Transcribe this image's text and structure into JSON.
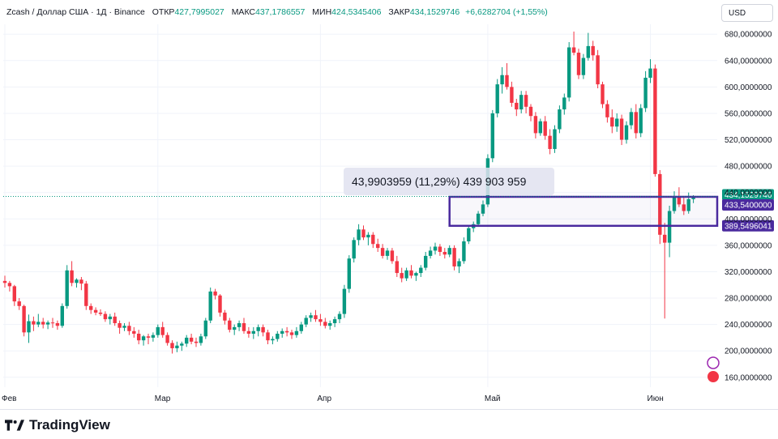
{
  "header": {
    "symbol": "Zcash / Доллар США · 1Д · Binance",
    "open_label": "ОТКР",
    "open_value": "427,7995027",
    "high_label": "МАКС",
    "high_value": "437,1786557",
    "low_label": "МИН",
    "low_value": "424,5345406",
    "close_label": "ЗАКР",
    "close_value": "434,1529746",
    "change_value": "+6,6282704 (+1,55%)"
  },
  "currency_button": "USD",
  "brand": "TradingView",
  "colors": {
    "up": "#089981",
    "down": "#f23645",
    "rect": "#4a2a9e",
    "last_price": "#089981"
  },
  "chart_data": {
    "type": "candlestick",
    "x_labels": [
      "Фев",
      "Мар",
      "Апр",
      "Май",
      "Июн"
    ],
    "y_ticks": [
      "160,0000000",
      "200,0000000",
      "240,0000000",
      "280,0000000",
      "320,0000000",
      "360,0000000",
      "400,0000000",
      "440,0000000",
      "480,0000000",
      "520,0000000",
      "560,0000000",
      "600,0000000",
      "640,0000000",
      "680,0000000"
    ],
    "y_range": [
      145,
      695
    ],
    "price_labels": {
      "last": "434,1529746",
      "upper": "433,5400000",
      "lower": "389,5496041"
    },
    "measure_label": "43,9903959 (11,29%) 439 903 959",
    "measure_range": [
      389.5496041,
      433.54
    ],
    "candles": [
      [
        306,
        314,
        296,
        303
      ],
      [
        303,
        306,
        290,
        298
      ],
      [
        298,
        300,
        268,
        275
      ],
      [
        275,
        280,
        262,
        268
      ],
      [
        268,
        270,
        222,
        228
      ],
      [
        228,
        255,
        212,
        245
      ],
      [
        245,
        252,
        230,
        240
      ],
      [
        240,
        256,
        236,
        244
      ],
      [
        244,
        250,
        234,
        240
      ],
      [
        240,
        246,
        233,
        243
      ],
      [
        243,
        250,
        235,
        242
      ],
      [
        242,
        246,
        232,
        238
      ],
      [
        238,
        272,
        235,
        268
      ],
      [
        268,
        330,
        264,
        322
      ],
      [
        322,
        336,
        298,
        303
      ],
      [
        303,
        310,
        296,
        308
      ],
      [
        308,
        312,
        292,
        302
      ],
      [
        302,
        306,
        262,
        268
      ],
      [
        268,
        272,
        256,
        262
      ],
      [
        262,
        266,
        254,
        258
      ],
      [
        258,
        263,
        253,
        256
      ],
      [
        256,
        260,
        244,
        248
      ],
      [
        248,
        256,
        240,
        252
      ],
      [
        252,
        258,
        238,
        242
      ],
      [
        242,
        246,
        226,
        235
      ],
      [
        235,
        242,
        230,
        238
      ],
      [
        238,
        244,
        224,
        230
      ],
      [
        230,
        236,
        220,
        226
      ],
      [
        226,
        232,
        210,
        216
      ],
      [
        216,
        224,
        208,
        222
      ],
      [
        222,
        226,
        210,
        220
      ],
      [
        220,
        228,
        214,
        224
      ],
      [
        224,
        240,
        220,
        236
      ],
      [
        236,
        244,
        220,
        224
      ],
      [
        224,
        228,
        208,
        212
      ],
      [
        212,
        216,
        196,
        204
      ],
      [
        204,
        214,
        198,
        208
      ],
      [
        208,
        214,
        200,
        211
      ],
      [
        211,
        224,
        206,
        220
      ],
      [
        220,
        226,
        210,
        214
      ],
      [
        214,
        220,
        206,
        212
      ],
      [
        212,
        226,
        208,
        222
      ],
      [
        222,
        250,
        218,
        246
      ],
      [
        246,
        296,
        242,
        290
      ],
      [
        290,
        294,
        278,
        284
      ],
      [
        284,
        286,
        252,
        258
      ],
      [
        258,
        262,
        240,
        246
      ],
      [
        246,
        250,
        228,
        232
      ],
      [
        232,
        240,
        224,
        236
      ],
      [
        236,
        246,
        230,
        242
      ],
      [
        242,
        250,
        226,
        230
      ],
      [
        230,
        236,
        220,
        226
      ],
      [
        226,
        236,
        218,
        230
      ],
      [
        230,
        240,
        222,
        236
      ],
      [
        236,
        240,
        222,
        228
      ],
      [
        228,
        232,
        210,
        216
      ],
      [
        216,
        222,
        210,
        218
      ],
      [
        218,
        230,
        214,
        226
      ],
      [
        226,
        234,
        220,
        230
      ],
      [
        230,
        236,
        222,
        228
      ],
      [
        228,
        232,
        218,
        224
      ],
      [
        224,
        236,
        220,
        230
      ],
      [
        230,
        244,
        226,
        240
      ],
      [
        240,
        254,
        236,
        250
      ],
      [
        250,
        258,
        244,
        254
      ],
      [
        254,
        262,
        244,
        248
      ],
      [
        248,
        256,
        238,
        244
      ],
      [
        244,
        250,
        234,
        238
      ],
      [
        238,
        246,
        232,
        242
      ],
      [
        242,
        252,
        236,
        248
      ],
      [
        248,
        260,
        242,
        256
      ],
      [
        256,
        300,
        250,
        294
      ],
      [
        294,
        345,
        288,
        340
      ],
      [
        340,
        372,
        334,
        368
      ],
      [
        368,
        392,
        360,
        384
      ],
      [
        384,
        390,
        368,
        372
      ],
      [
        372,
        380,
        360,
        376
      ],
      [
        376,
        380,
        356,
        362
      ],
      [
        362,
        370,
        350,
        356
      ],
      [
        356,
        362,
        340,
        344
      ],
      [
        344,
        356,
        338,
        352
      ],
      [
        352,
        356,
        332,
        336
      ],
      [
        336,
        344,
        312,
        318
      ],
      [
        318,
        326,
        304,
        310
      ],
      [
        310,
        326,
        306,
        322
      ],
      [
        322,
        330,
        310,
        314
      ],
      [
        314,
        320,
        306,
        318
      ],
      [
        318,
        330,
        312,
        326
      ],
      [
        326,
        350,
        322,
        344
      ],
      [
        344,
        358,
        340,
        352
      ],
      [
        352,
        364,
        346,
        358
      ],
      [
        358,
        362,
        344,
        350
      ],
      [
        350,
        356,
        340,
        346
      ],
      [
        346,
        360,
        342,
        356
      ],
      [
        356,
        360,
        322,
        328
      ],
      [
        328,
        340,
        318,
        336
      ],
      [
        336,
        372,
        332,
        366
      ],
      [
        366,
        390,
        362,
        386
      ],
      [
        386,
        396,
        380,
        392
      ],
      [
        392,
        412,
        388,
        408
      ],
      [
        408,
        428,
        404,
        422
      ],
      [
        422,
        498,
        418,
        492
      ],
      [
        492,
        565,
        486,
        560
      ],
      [
        560,
        612,
        554,
        604
      ],
      [
        604,
        630,
        590,
        618
      ],
      [
        618,
        636,
        596,
        600
      ],
      [
        600,
        608,
        570,
        576
      ],
      [
        576,
        582,
        556,
        566
      ],
      [
        566,
        594,
        560,
        588
      ],
      [
        588,
        594,
        560,
        570
      ],
      [
        570,
        574,
        548,
        556
      ],
      [
        556,
        562,
        522,
        530
      ],
      [
        530,
        552,
        526,
        548
      ],
      [
        548,
        556,
        520,
        526
      ],
      [
        526,
        536,
        498,
        506
      ],
      [
        506,
        542,
        500,
        536
      ],
      [
        536,
        572,
        530,
        566
      ],
      [
        566,
        590,
        558,
        584
      ],
      [
        584,
        668,
        578,
        660
      ],
      [
        660,
        684,
        648,
        652
      ],
      [
        652,
        658,
        612,
        618
      ],
      [
        618,
        650,
        612,
        644
      ],
      [
        644,
        682,
        640,
        662
      ],
      [
        662,
        670,
        640,
        648
      ],
      [
        648,
        656,
        598,
        604
      ],
      [
        604,
        608,
        568,
        574
      ],
      [
        574,
        580,
        546,
        554
      ],
      [
        554,
        566,
        530,
        540
      ],
      [
        540,
        560,
        532,
        552
      ],
      [
        552,
        558,
        512,
        520
      ],
      [
        520,
        548,
        514,
        542
      ],
      [
        542,
        568,
        536,
        562
      ],
      [
        562,
        574,
        522,
        530
      ],
      [
        530,
        574,
        524,
        568
      ],
      [
        568,
        624,
        562,
        614
      ],
      [
        614,
        642,
        606,
        628
      ],
      [
        628,
        634,
        464,
        468
      ],
      [
        468,
        474,
        362,
        376
      ],
      [
        376,
        394,
        249,
        364
      ],
      [
        364,
        420,
        342,
        412
      ],
      [
        412,
        442,
        408,
        434
      ],
      [
        434,
        448,
        418,
        422
      ],
      [
        422,
        432,
        406,
        412
      ],
      [
        412,
        440,
        408,
        430
      ],
      [
        430,
        436,
        424,
        434
      ]
    ]
  }
}
